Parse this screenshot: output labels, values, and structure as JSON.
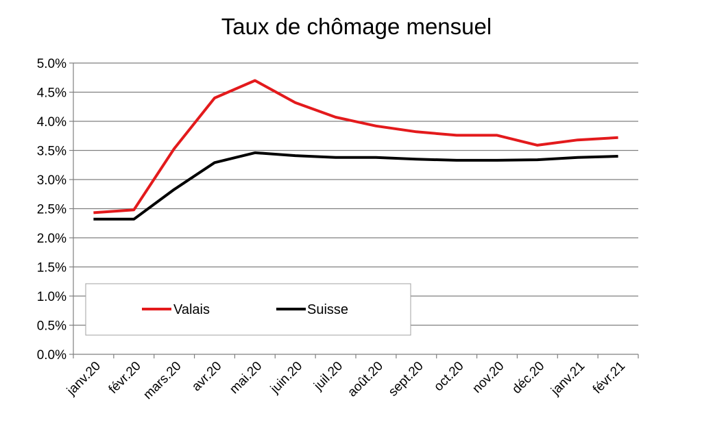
{
  "chart_data": {
    "type": "line",
    "title": "Taux de chômage mensuel",
    "categories": [
      "janv.20",
      "févr.20",
      "mars.20",
      "avr.20",
      "mai.20",
      "juin.20",
      "juil.20",
      "août.20",
      "sept.20",
      "oct.20",
      "nov.20",
      "déc.20",
      "janv.21",
      "févr.21"
    ],
    "y_tick_labels": [
      "0.0%",
      "0.5%",
      "1.0%",
      "1.5%",
      "2.0%",
      "2.5%",
      "3.0%",
      "3.5%",
      "4.0%",
      "4.5%",
      "5.0%"
    ],
    "ylim": [
      0,
      5.0
    ],
    "y_unit": "%",
    "grid": "horizontal",
    "legend_position": "bottom-left inside plot",
    "series": [
      {
        "name": "Valais",
        "color": "#e31a1c",
        "values": [
          2.43,
          2.48,
          3.53,
          4.4,
          4.7,
          4.32,
          4.07,
          3.92,
          3.82,
          3.76,
          3.76,
          3.59,
          3.68,
          3.72
        ]
      },
      {
        "name": "Suisse",
        "color": "#000000",
        "values": [
          2.32,
          2.32,
          2.83,
          3.29,
          3.46,
          3.41,
          3.38,
          3.38,
          3.35,
          3.33,
          3.33,
          3.34,
          3.38,
          3.4
        ]
      }
    ]
  }
}
